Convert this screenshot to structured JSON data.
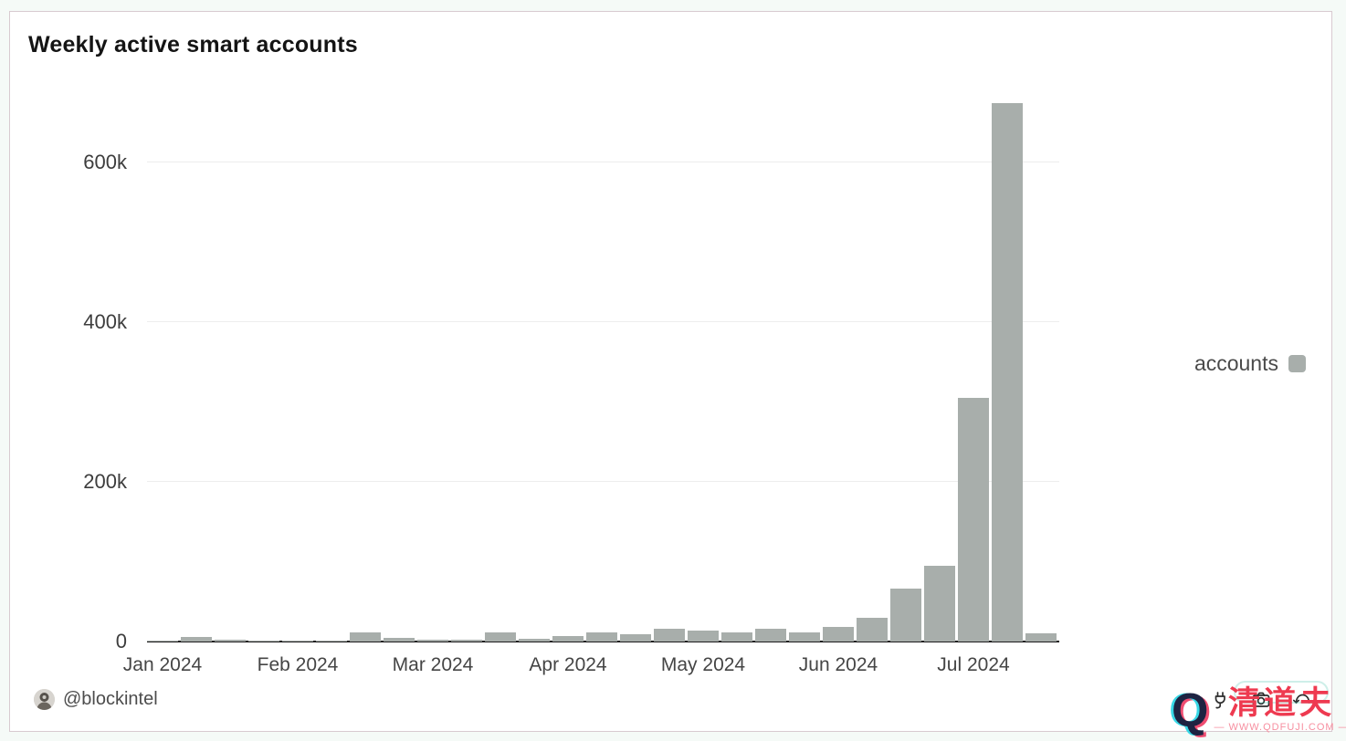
{
  "card": {
    "title": "Weekly active smart accounts",
    "background": "#ffffff",
    "border_color": "#d8cad0"
  },
  "chart_data": {
    "type": "bar",
    "title": "Weekly active smart accounts",
    "series_name": "accounts",
    "bar_color": "#a8aeab",
    "grid": "horizontal",
    "legend": {
      "label": "accounts",
      "position": "right"
    },
    "x_tick_labels": [
      "Jan 2024",
      "Feb 2024",
      "Mar 2024",
      "Apr 2024",
      "May 2024",
      "Jun 2024",
      "Jul 2024"
    ],
    "x_tick_bar_index": [
      0,
      4,
      8,
      12,
      16,
      20,
      24
    ],
    "y_tick_labels": [
      "0",
      "200k",
      "400k",
      "600k"
    ],
    "y_tick_values": [
      0,
      200000,
      400000,
      600000
    ],
    "ylim": [
      0,
      700000
    ],
    "x_unit": "week",
    "values": [
      1000,
      6000,
      2000,
      1000,
      1000,
      1000,
      12000,
      5000,
      2000,
      2000,
      11000,
      3000,
      7000,
      11000,
      9000,
      16000,
      14000,
      11000,
      16000,
      12000,
      18000,
      30000,
      66000,
      95000,
      305000,
      675000,
      10000
    ]
  },
  "footer": {
    "author_handle": "@blockintel",
    "icons": [
      "plug-icon",
      "camera-icon",
      "undo-arrow-icon"
    ]
  },
  "watermark": {
    "logo_letter": "Q",
    "brand_cn": "清道夫",
    "url_line": "— WWW.QDFUJI.COM —",
    "brand_color": "#ee3a50",
    "url_color": "#f78fa0",
    "logo_navy": "#1e2342",
    "logo_cyan": "#38d8e6",
    "logo_pink": "#ef4d71"
  }
}
